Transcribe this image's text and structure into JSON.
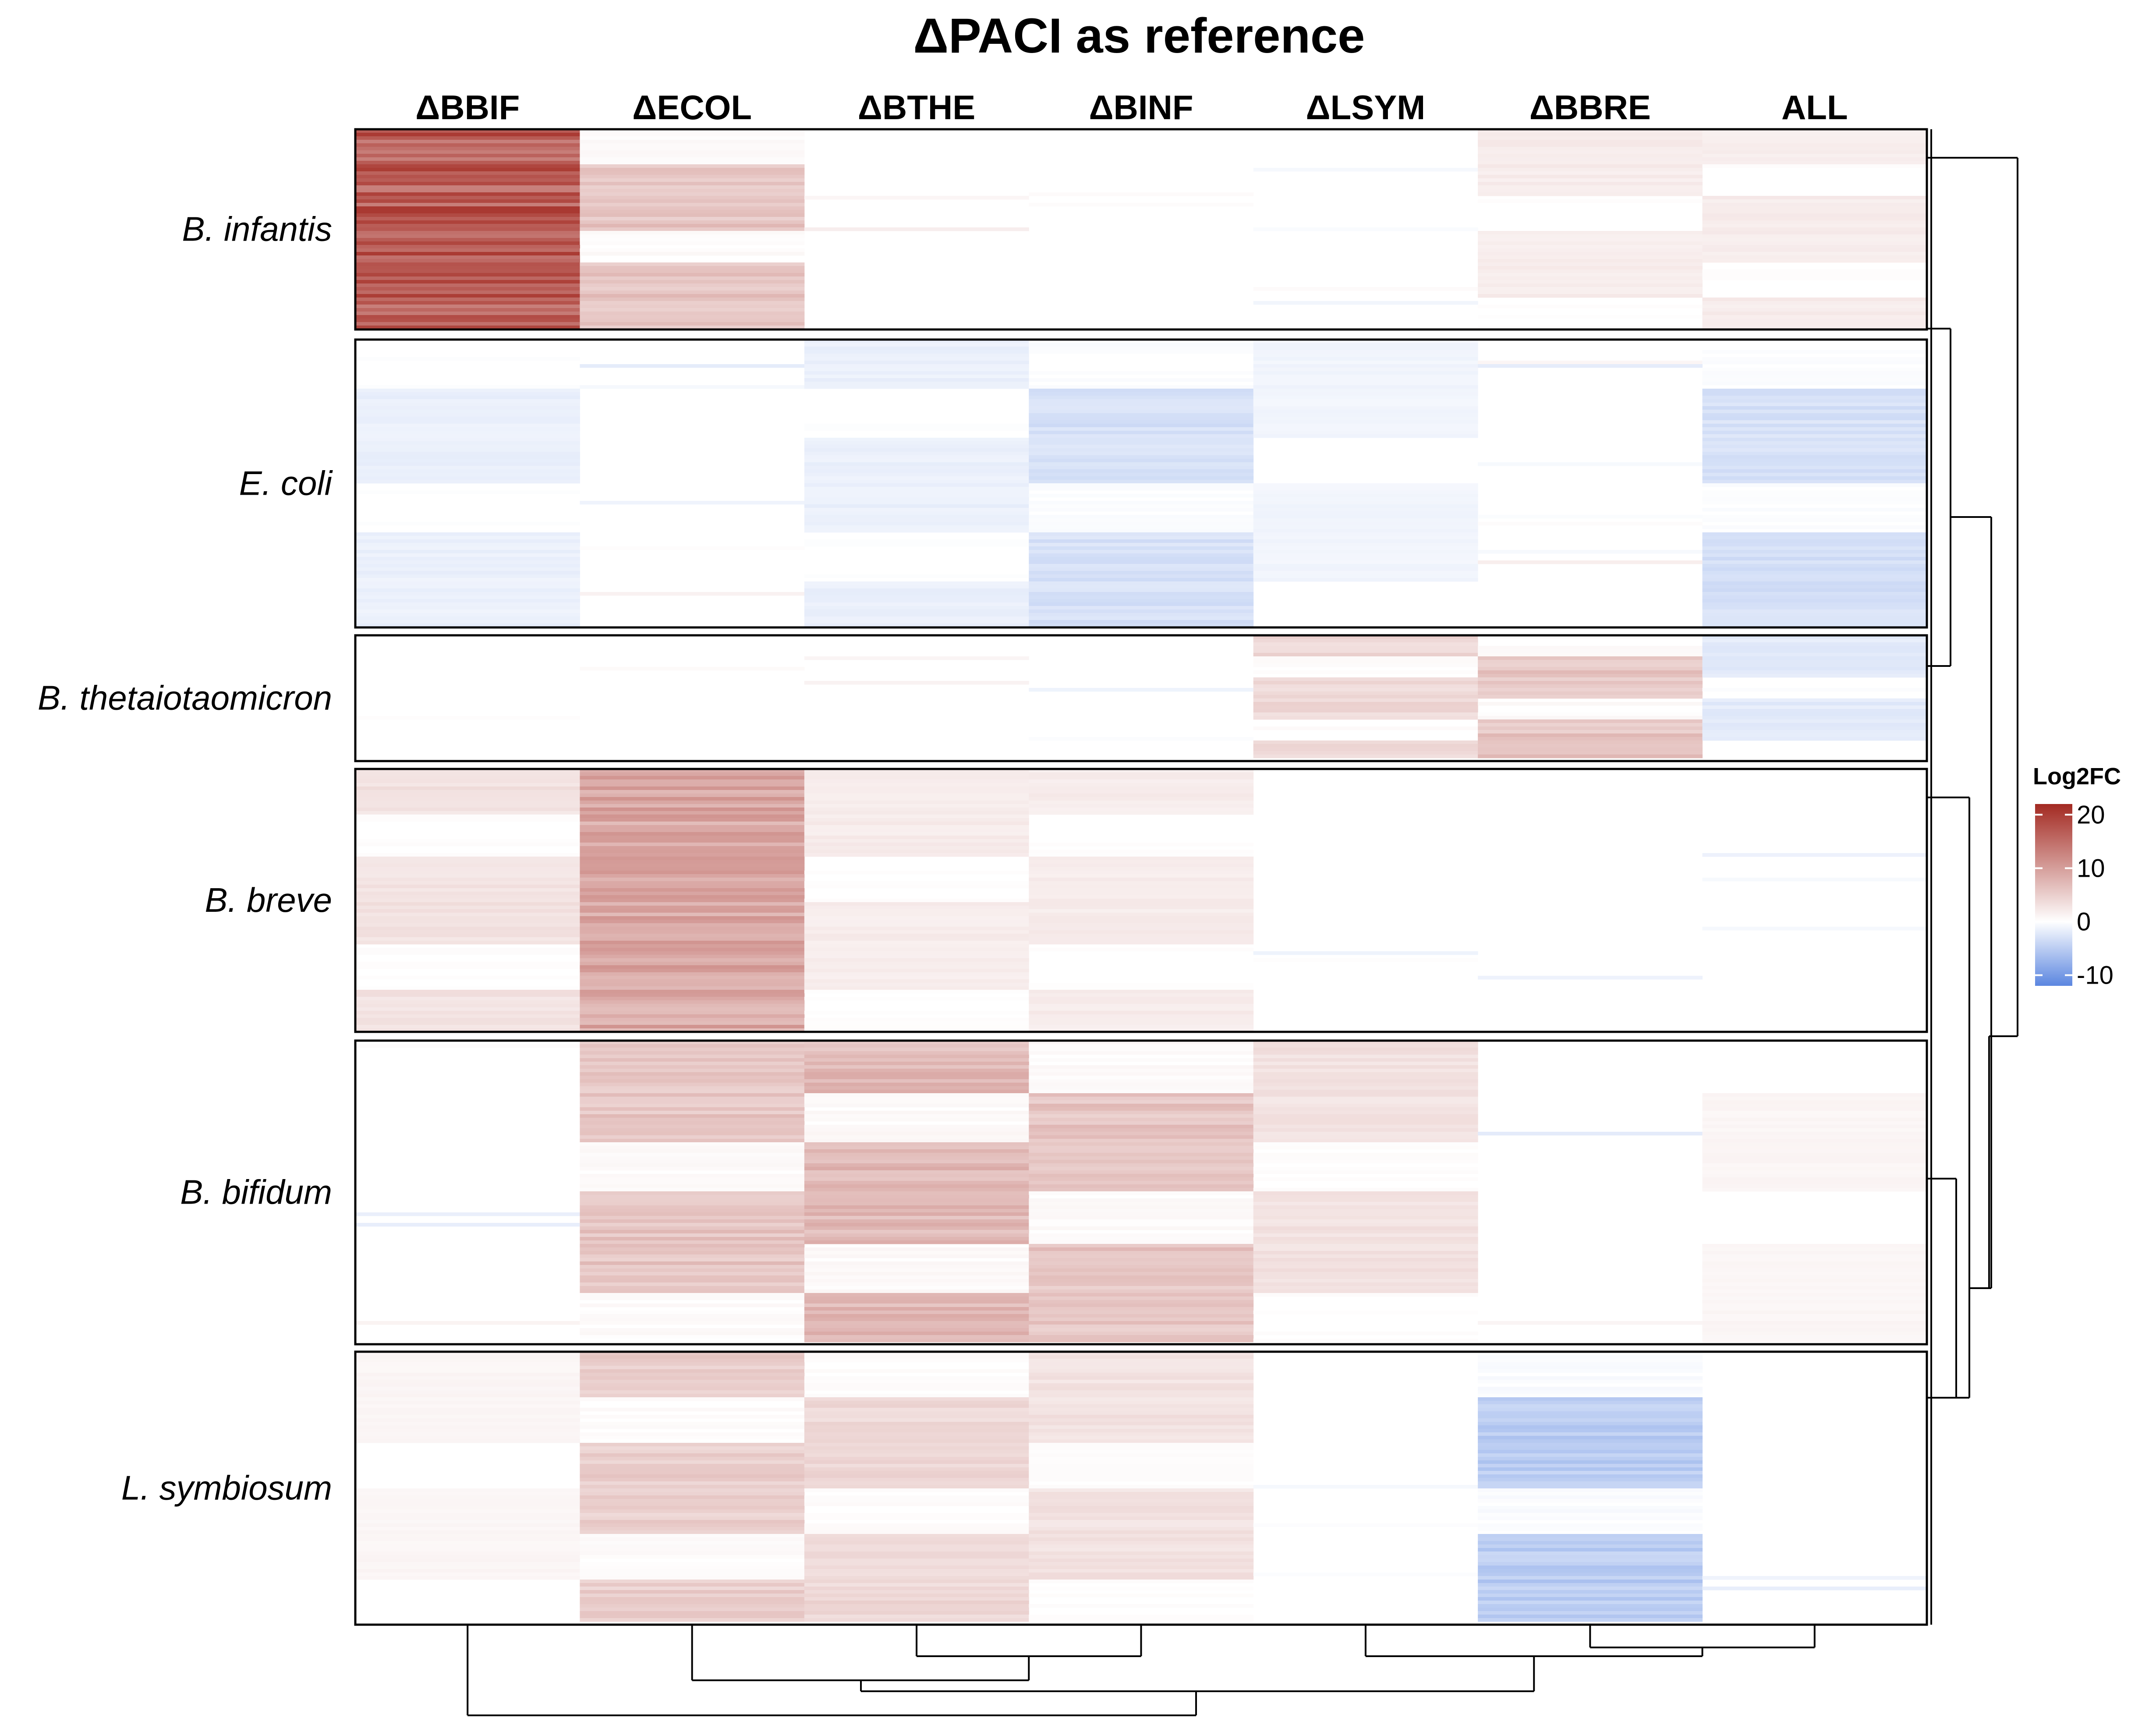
{
  "chart_data": {
    "type": "heatmap",
    "title": "ΔPACI as reference",
    "columns": [
      "ΔBBIF",
      "ΔECOL",
      "ΔBTHE",
      "ΔBINF",
      "ΔLSYM",
      "ΔBBRE",
      "ALL"
    ],
    "row_groups": [
      "B. infantis",
      "E. coli",
      "B. thetaiotaomicron",
      "B. breve",
      "B. bifidum",
      "L. symbiosum"
    ],
    "legend": {
      "title": "Log2FC",
      "ticks": [
        20,
        10,
        0,
        -10
      ],
      "range": [
        -12,
        22
      ],
      "colors": {
        "low": "#5b86e0",
        "mid": "#ffffff",
        "high": "#a32a22"
      }
    },
    "approx_group_means": [
      {
        "group": "B. infantis",
        "values": [
          17,
          6,
          0,
          0,
          0,
          2,
          2
        ]
      },
      {
        "group": "E. coli",
        "values": [
          -1.5,
          0,
          -1.5,
          -3,
          -1,
          0,
          -3
        ]
      },
      {
        "group": "B. thetaiotaomicron",
        "values": [
          0,
          0,
          0,
          0,
          4,
          6,
          -2
        ]
      },
      {
        "group": "B. breve",
        "values": [
          3,
          9,
          2,
          2,
          0,
          0,
          0
        ]
      },
      {
        "group": "B. bifidum",
        "values": [
          0,
          6,
          7,
          6,
          3,
          0,
          1
        ]
      },
      {
        "group": "L. symbiosum",
        "values": [
          1,
          5,
          4,
          3,
          0,
          -5,
          0
        ]
      }
    ]
  }
}
